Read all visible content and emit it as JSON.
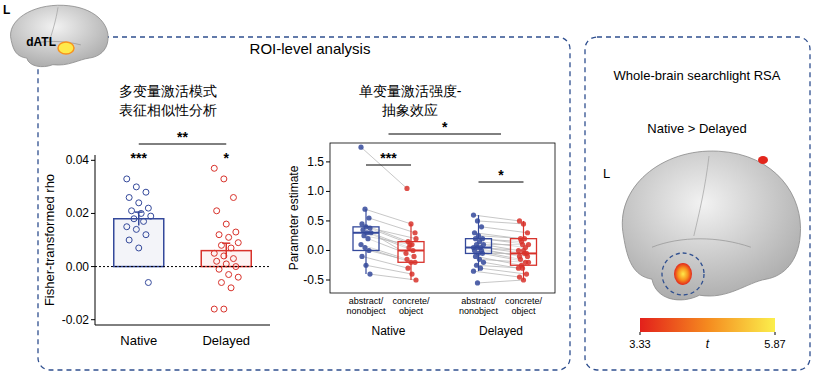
{
  "chart_data": [
    {
      "type": "bar",
      "title": [
        "多变量激活模式",
        "表征相似性分析"
      ],
      "y_label": "Fisher-transformed rho",
      "categories": [
        "Native",
        "Delayed"
      ],
      "values": [
        0.018,
        0.006
      ],
      "errors": [
        0.0025,
        0.0028
      ],
      "colors": [
        "#34499b",
        "#d8322b"
      ],
      "points": [
        [
          0.033,
          0.03,
          0.028,
          0.026,
          0.024,
          0.022,
          0.021,
          0.02,
          0.019,
          0.018,
          0.017,
          0.015,
          0.014,
          0.012,
          0.01,
          0.007,
          -0.006
        ],
        [
          0.037,
          0.033,
          0.026,
          0.021,
          0.016,
          0.013,
          0.012,
          0.011,
          0.009,
          0.008,
          0.007,
          0.005,
          0.004,
          0.003,
          0.002,
          0.001,
          0.0,
          -0.001,
          -0.003,
          -0.004,
          -0.006,
          -0.008,
          -0.016,
          -0.016
        ]
      ],
      "zero_line": 0,
      "ylim": [
        -0.022,
        0.042
      ],
      "yticks": [
        -0.02,
        {
          "value": 0,
          "label": "0.00"
        },
        0.02,
        0.04
      ],
      "annotations": {
        "per_category": [
          "***",
          "*"
        ],
        "between": "**"
      }
    },
    {
      "type": "box",
      "title": [
        "单变量激活强度-",
        "抽象效应"
      ],
      "y_label": "Parameter estimate",
      "ylim": [
        -0.72,
        1.82
      ],
      "yticks": [
        -0.5,
        {
          "value": 0,
          "label": "0.0"
        },
        0.5,
        {
          "value": 1,
          "label": "1.0"
        },
        1.5
      ],
      "groups": [
        {
          "name": "Native",
          "boxes": [
            {
              "category": "abstract/\nnonobject",
              "color": "#34499b",
              "whisker_low": -0.4,
              "q1": 0.0,
              "median": 0.3,
              "q3": 0.4,
              "whisker_high": 0.7,
              "points": [
                1.75,
                0.7,
                0.55,
                0.45,
                0.4,
                0.38,
                0.35,
                0.3,
                0.3,
                0.25,
                0.2,
                0.1,
                0.05,
                0.0,
                -0.1,
                -0.25,
                -0.4
              ]
            },
            {
              "category": "concrete/\nobject",
              "color": "#d8322b",
              "whisker_low": -0.5,
              "q1": -0.2,
              "median": 0.0,
              "q3": 0.15,
              "whisker_high": 0.45,
              "points": [
                1.05,
                0.45,
                0.3,
                0.15,
                0.1,
                0.2,
                0.05,
                0.0,
                -0.05,
                0.1,
                -0.1,
                -0.15,
                -0.2,
                -0.2,
                -0.3,
                -0.4,
                -0.5
              ]
            }
          ]
        },
        {
          "name": "Delayed",
          "boxes": [
            {
              "category": "abstract/\nnonobject",
              "color": "#34499b",
              "whisker_low": -0.35,
              "q1": -0.05,
              "median": 0.05,
              "q3": 0.2,
              "whisker_high": 0.6,
              "points": [
                0.6,
                0.5,
                0.4,
                0.3,
                0.25,
                0.2,
                0.2,
                0.15,
                0.1,
                0.1,
                0.05,
                0.05,
                0.05,
                0.0,
                0.0,
                -0.05,
                -0.05,
                -0.1,
                -0.15,
                -0.2,
                -0.25,
                -0.3,
                -0.35,
                -0.55
              ]
            },
            {
              "category": "concrete/\nobject",
              "color": "#d8322b",
              "whisker_low": -0.5,
              "q1": -0.25,
              "median": -0.05,
              "q3": 0.2,
              "whisker_high": 0.5,
              "points": [
                0.5,
                0.45,
                0.3,
                0.2,
                0.2,
                0.1,
                0.15,
                0.05,
                0.0,
                0.1,
                -0.05,
                -0.1,
                0.0,
                -0.1,
                -0.15,
                -0.05,
                -0.2,
                -0.25,
                -0.2,
                -0.3,
                -0.3,
                -0.4,
                -0.45,
                -0.5
              ]
            }
          ]
        }
      ],
      "annotations": {
        "within_group": [
          "***",
          "*"
        ],
        "between_groups": "*"
      }
    }
  ],
  "figure": {
    "panel_label": "L",
    "roi_label": "dATL",
    "roi_title": "ROI-level analysis",
    "searchlight": {
      "title": "Whole-brain searchlight RSA",
      "contrast": "Native > Delayed",
      "hemisphere": "L",
      "colorbar": {
        "label": "t",
        "range": [
          3.33,
          5.87
        ],
        "ticks": [
          3.33,
          5.87
        ]
      }
    }
  }
}
